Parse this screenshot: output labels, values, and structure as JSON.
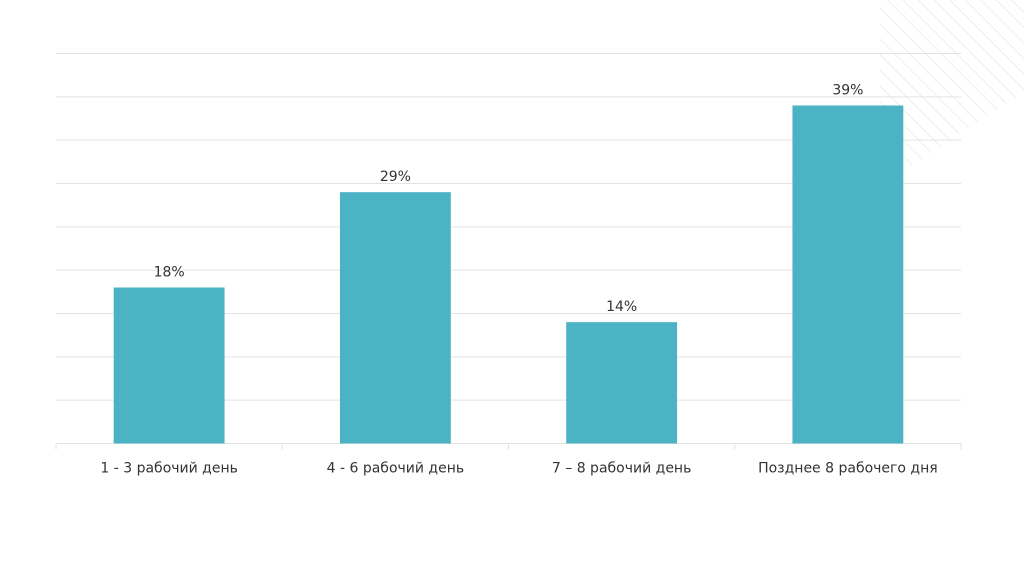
{
  "chart_data": {
    "type": "bar",
    "categories": [
      "1 - 3 рабочий день",
      "4 - 6 рабочий день",
      "7 – 8 рабочий день",
      "Позднее 8 рабочего дня"
    ],
    "values": [
      18,
      29,
      14,
      39
    ],
    "value_labels": [
      "18%",
      "29%",
      "14%",
      "39%"
    ],
    "unit": "%",
    "title": "",
    "xlabel": "",
    "ylabel": "",
    "ylim": [
      0,
      45
    ],
    "y_step": 5,
    "grid": true,
    "legend": "none",
    "bar_color": "#4BB3C3",
    "grid_color": "#E3E3E3",
    "text_color": "#333333",
    "decor_color": "#EDEDED"
  }
}
